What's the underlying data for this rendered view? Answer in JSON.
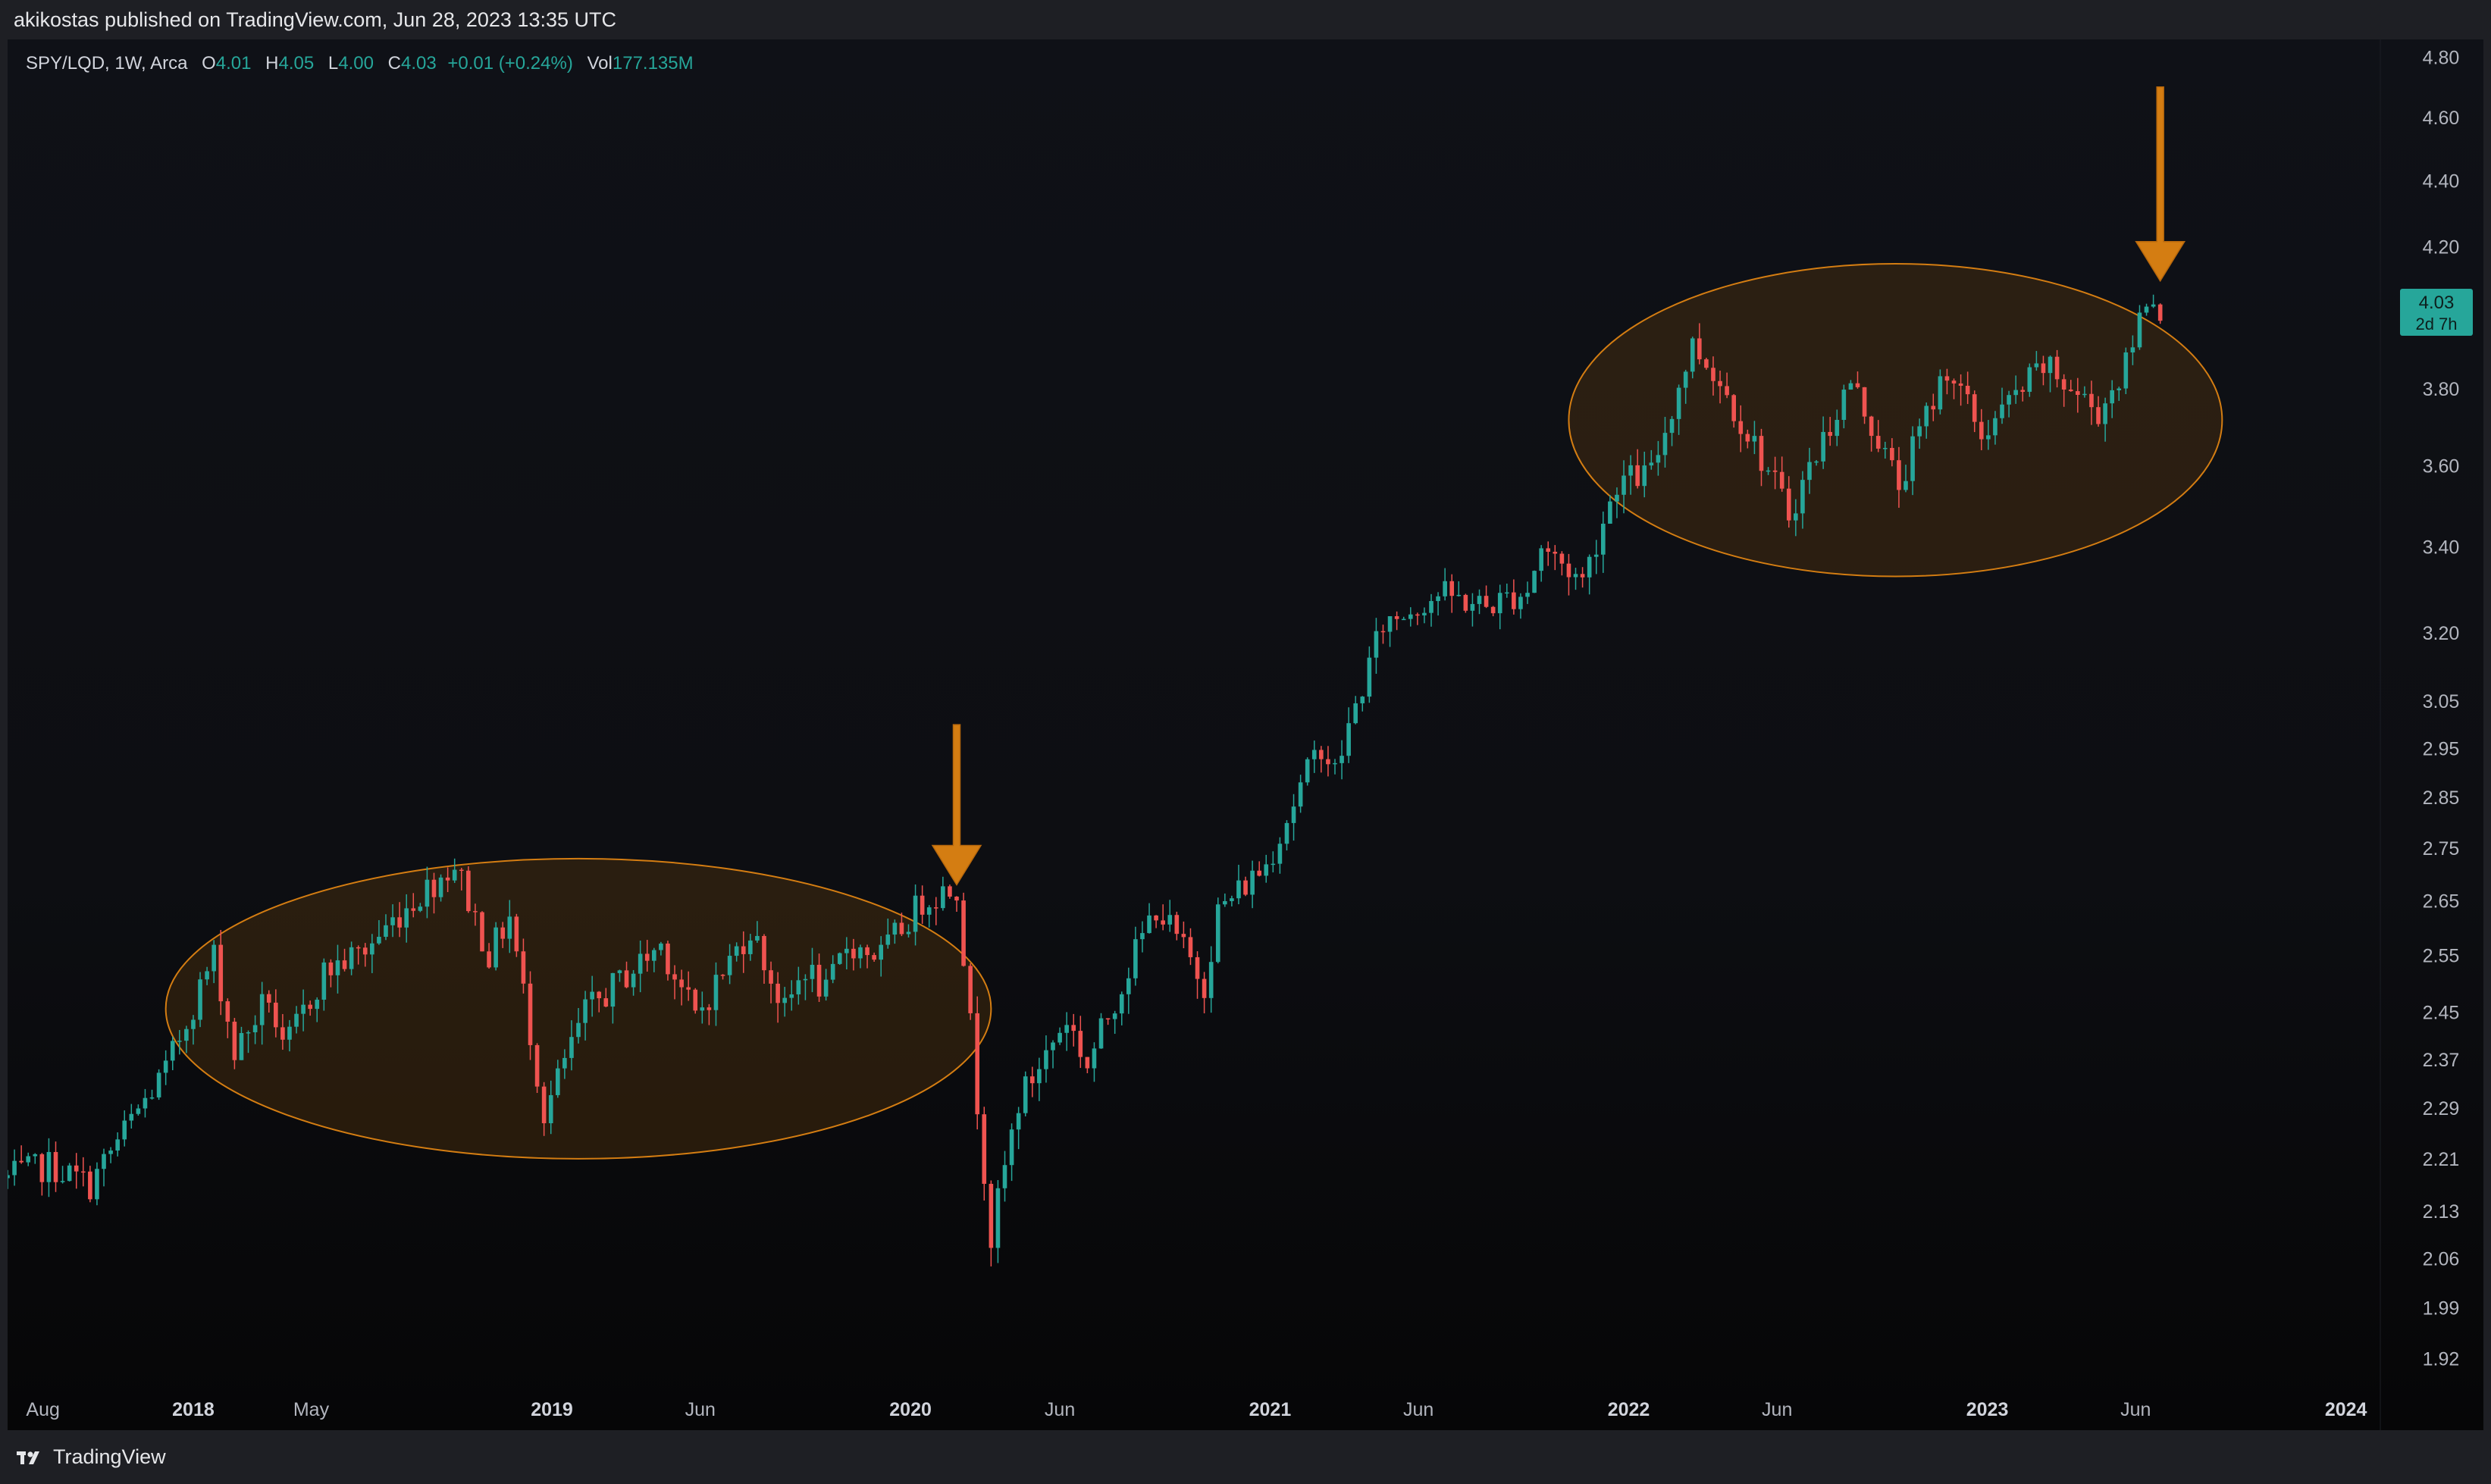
{
  "header": {
    "published_line": "akikostas published on TradingView.com, Jun 28, 2023 13:35 UTC"
  },
  "legend": {
    "symbol": "SPY/LQD, 1W, Arca",
    "open_label": "O",
    "open": "4.01",
    "high_label": "H",
    "high": "4.05",
    "low_label": "L",
    "low": "4.00",
    "close_label": "C",
    "close": "4.03",
    "change": "+0.01 (+0.24%)",
    "vol_label": "Vol",
    "volume": "177.135M"
  },
  "price_badge": {
    "price": "4.03",
    "countdown": "2d 7h"
  },
  "footer": {
    "brand": "TradingView"
  },
  "colors": {
    "up": "#26a69a",
    "down": "#ef5350",
    "annotation": "#d47d12",
    "ellipse_fill": "rgba(120,72,10,0.28)",
    "background": "#0e0f14",
    "axis_text": "#b2b5be"
  },
  "chart_data": {
    "type": "candlestick",
    "timeframe": "1W",
    "symbol": "SPY/LQD",
    "y_scale": "log",
    "ylim": [
      1.86,
      4.86
    ],
    "y_ticks": [
      4.8,
      4.6,
      4.4,
      4.2,
      3.8,
      3.6,
      3.4,
      3.2,
      3.05,
      2.95,
      2.85,
      2.75,
      2.65,
      2.55,
      2.45,
      2.37,
      2.29,
      2.21,
      2.13,
      2.06,
      1.99,
      1.92
    ],
    "x_range": [
      "2017-06-26",
      "2024-02-05"
    ],
    "x_ticks": [
      {
        "label": "Aug",
        "date": "2017-08-01",
        "bold": false
      },
      {
        "label": "2018",
        "date": "2018-01-01",
        "bold": true
      },
      {
        "label": "May",
        "date": "2018-05-01",
        "bold": false
      },
      {
        "label": "2019",
        "date": "2019-01-01",
        "bold": true
      },
      {
        "label": "Jun",
        "date": "2019-06-01",
        "bold": false
      },
      {
        "label": "2020",
        "date": "2020-01-01",
        "bold": true
      },
      {
        "label": "Jun",
        "date": "2020-06-01",
        "bold": false
      },
      {
        "label": "2021",
        "date": "2021-01-01",
        "bold": true
      },
      {
        "label": "Jun",
        "date": "2021-06-01",
        "bold": false
      },
      {
        "label": "2022",
        "date": "2022-01-01",
        "bold": true
      },
      {
        "label": "Jun",
        "date": "2022-06-01",
        "bold": false
      },
      {
        "label": "2023",
        "date": "2023-01-01",
        "bold": true
      },
      {
        "label": "Jun",
        "date": "2023-06-01",
        "bold": false
      },
      {
        "label": "2024",
        "date": "2024-01-01",
        "bold": true
      }
    ],
    "price_path": [
      [
        "2017-06-26",
        2.18
      ],
      [
        "2017-08-07",
        2.2
      ],
      [
        "2017-09-18",
        2.17
      ],
      [
        "2017-10-30",
        2.27
      ],
      [
        "2017-12-04",
        2.35
      ],
      [
        "2018-01-22",
        2.55
      ],
      [
        "2018-02-12",
        2.38
      ],
      [
        "2018-03-19",
        2.48
      ],
      [
        "2018-04-02",
        2.38
      ],
      [
        "2018-05-14",
        2.52
      ],
      [
        "2018-06-25",
        2.56
      ],
      [
        "2018-08-06",
        2.64
      ],
      [
        "2018-09-24",
        2.72
      ],
      [
        "2018-10-29",
        2.55
      ],
      [
        "2018-11-19",
        2.62
      ],
      [
        "2018-12-24",
        2.28
      ],
      [
        "2019-02-04",
        2.45
      ],
      [
        "2019-04-22",
        2.57
      ],
      [
        "2019-05-27",
        2.44
      ],
      [
        "2019-07-22",
        2.6
      ],
      [
        "2019-08-26",
        2.45
      ],
      [
        "2019-09-16",
        2.53
      ],
      [
        "2019-10-07",
        2.48
      ],
      [
        "2019-10-28",
        2.57
      ],
      [
        "2019-12-02",
        2.55
      ],
      [
        "2020-01-13",
        2.65
      ],
      [
        "2020-02-17",
        2.68
      ],
      [
        "2020-03-09",
        2.3
      ],
      [
        "2020-03-23",
        2.09
      ],
      [
        "2020-04-20",
        2.3
      ],
      [
        "2020-06-08",
        2.44
      ],
      [
        "2020-06-29",
        2.36
      ],
      [
        "2020-09-07",
        2.64
      ],
      [
        "2020-10-26",
        2.5
      ],
      [
        "2020-11-09",
        2.63
      ],
      [
        "2020-12-28",
        2.72
      ],
      [
        "2021-02-22",
        2.96
      ],
      [
        "2021-03-08",
        2.9
      ],
      [
        "2021-04-26",
        3.22
      ],
      [
        "2021-06-21",
        3.29
      ],
      [
        "2021-08-09",
        3.26
      ],
      [
        "2021-09-20",
        3.3
      ],
      [
        "2021-10-04",
        3.4
      ],
      [
        "2021-11-15",
        3.32
      ],
      [
        "2021-12-20",
        3.56
      ],
      [
        "2022-01-24",
        3.58
      ],
      [
        "2022-03-07",
        3.92
      ],
      [
        "2022-03-28",
        3.85
      ],
      [
        "2022-05-16",
        3.62
      ],
      [
        "2022-06-13",
        3.48
      ],
      [
        "2022-08-15",
        3.82
      ],
      [
        "2022-10-03",
        3.55
      ],
      [
        "2022-11-21",
        3.86
      ],
      [
        "2022-12-26",
        3.68
      ],
      [
        "2023-02-27",
        3.86
      ],
      [
        "2023-04-24",
        3.74
      ],
      [
        "2023-05-22",
        3.86
      ],
      [
        "2023-06-12",
        4.06
      ],
      [
        "2023-06-26",
        4.03
      ]
    ],
    "annotations": [
      {
        "type": "ellipse",
        "from": "2017-12-04",
        "to": "2020-03-23",
        "top": 2.73,
        "bottom": 2.21
      },
      {
        "type": "ellipse",
        "from": "2021-11-01",
        "to": "2023-08-28",
        "top": 4.15,
        "bottom": 3.33
      },
      {
        "type": "arrow-down",
        "date": "2020-02-17",
        "from_price": 3.0,
        "to_price": 2.68
      },
      {
        "type": "arrow-down",
        "date": "2023-06-26",
        "from_price": 4.7,
        "to_price": 4.1
      }
    ]
  }
}
